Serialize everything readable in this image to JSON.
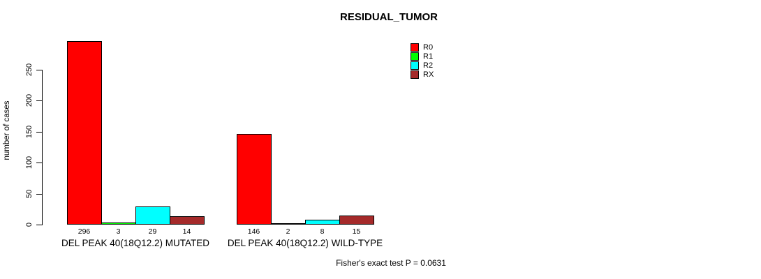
{
  "chart_data": {
    "type": "bar",
    "title": "RESIDUAL_TUMOR",
    "ylabel": "number of cases",
    "xlabel": "",
    "yticks": [
      0,
      50,
      100,
      150,
      200,
      250
    ],
    "ylim": [
      0,
      296
    ],
    "axis_tick_max": 250,
    "grid": false,
    "legend_position": "top-right",
    "categories": [
      "DEL PEAK 40(18Q12.2) MUTATED",
      "DEL PEAK 40(18Q12.2) WILD-TYPE"
    ],
    "series": [
      {
        "name": "R0",
        "color": "#FF0000",
        "values": [
          296,
          146
        ]
      },
      {
        "name": "R1",
        "color": "#00FF00",
        "values": [
          3,
          2
        ]
      },
      {
        "name": "R2",
        "color": "#00FFFF",
        "values": [
          29,
          8
        ]
      },
      {
        "name": "RX",
        "color": "#A52A2A",
        "values": [
          14,
          15
        ]
      }
    ],
    "bar_value_labels": [
      [
        296,
        3,
        29,
        14
      ],
      [
        146,
        2,
        8,
        15
      ]
    ],
    "annotation": "Fisher's exact test P = 0.0631"
  },
  "colors": {
    "background": "#ffffff",
    "axis": "#000000",
    "text": "#000000"
  }
}
